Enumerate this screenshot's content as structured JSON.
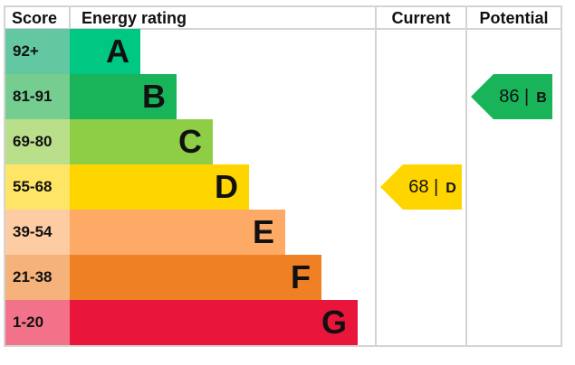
{
  "chart_data": {
    "type": "table",
    "headers": {
      "score": "Score",
      "rating": "Energy rating",
      "current": "Current",
      "potential": "Potential"
    },
    "bands": [
      {
        "score": "92+",
        "letter": "A",
        "color": "#00c781",
        "score_color": "#63c8a2"
      },
      {
        "score": "81-91",
        "letter": "B",
        "color": "#19b459",
        "score_color": "#75cd8f"
      },
      {
        "score": "69-80",
        "letter": "C",
        "color": "#8dce46",
        "score_color": "#badf8a"
      },
      {
        "score": "55-68",
        "letter": "D",
        "color": "#ffd500",
        "score_color": "#ffe566"
      },
      {
        "score": "39-54",
        "letter": "E",
        "color": "#fcaa65",
        "score_color": "#fdcca2"
      },
      {
        "score": "21-38",
        "letter": "F",
        "color": "#ef8023",
        "score_color": "#f5b27b"
      },
      {
        "score": "1-20",
        "letter": "G",
        "color": "#e9153b",
        "score_color": "#f27389"
      }
    ],
    "current": {
      "value": 68,
      "letter": "D",
      "label": "68 |",
      "color": "#ffd500"
    },
    "potential": {
      "value": 86,
      "letter": "B",
      "label": "86 |",
      "color": "#19b459"
    }
  }
}
